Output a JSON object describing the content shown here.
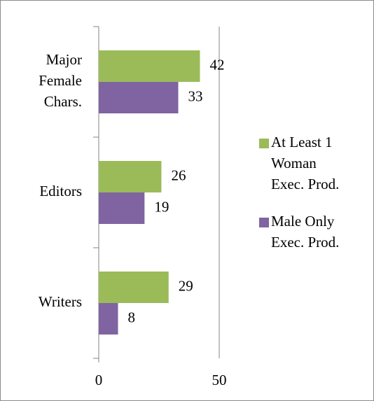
{
  "chart_data": {
    "type": "bar",
    "orientation": "horizontal",
    "categories": [
      "Major\nFemale\nChars.",
      "Editors",
      "Writers"
    ],
    "series": [
      {
        "name": "At Least 1\nWoman\nExec. Prod.",
        "color": "#9bbb59",
        "values": [
          42,
          26,
          29
        ]
      },
      {
        "name": "Male Only\nExec. Prod.",
        "color": "#8064a2",
        "values": [
          33,
          19,
          8
        ]
      }
    ],
    "xlim": [
      0,
      50
    ],
    "xticks": [
      0,
      50
    ],
    "grid": true,
    "legend": "right"
  }
}
